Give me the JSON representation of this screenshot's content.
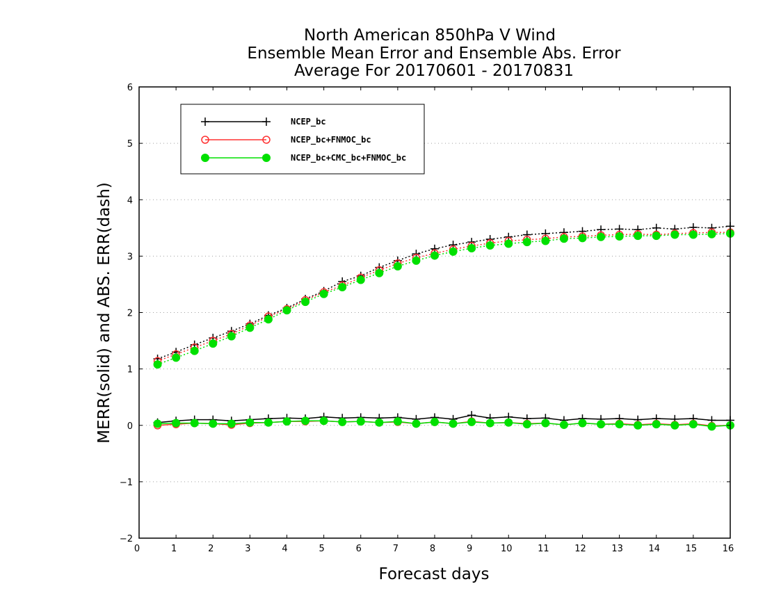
{
  "chart_data": {
    "type": "line",
    "title": [
      "North American 850hPa V Wind",
      "Ensemble Mean Error and Ensemble Abs. Error",
      "Average For 20170601 - 20170831"
    ],
    "xlabel": "Forecast days",
    "ylabel": "MERR(solid) and ABS. ERR(dash)",
    "xlim": [
      0,
      16
    ],
    "ylim": [
      -2,
      6
    ],
    "xticks": [
      "0",
      "1",
      "2",
      "3",
      "4",
      "5",
      "6",
      "7",
      "8",
      "9",
      "10",
      "11",
      "12",
      "13",
      "14",
      "15",
      "16"
    ],
    "yticks": [
      "−2",
      "−1",
      "0",
      "1",
      "2",
      "3",
      "4",
      "5",
      "6"
    ],
    "grid": "horizontal dotted",
    "legend_position": "top-left",
    "x": [
      0.5,
      1,
      1.5,
      2,
      2.5,
      3,
      3.5,
      4,
      4.5,
      5,
      5.5,
      6,
      6.5,
      7,
      7.5,
      8,
      8.5,
      9,
      9.5,
      10,
      10.5,
      11,
      11.5,
      12,
      12.5,
      13,
      13.5,
      14,
      14.5,
      15,
      15.5,
      16
    ],
    "series": [
      {
        "name": "NCEP_bc",
        "color": "#000000",
        "marker": "plus",
        "merr": [
          0.05,
          0.08,
          0.1,
          0.1,
          0.08,
          0.1,
          0.12,
          0.13,
          0.12,
          0.15,
          0.13,
          0.14,
          0.13,
          0.14,
          0.11,
          0.14,
          0.11,
          0.18,
          0.13,
          0.15,
          0.12,
          0.13,
          0.09,
          0.12,
          0.11,
          0.12,
          0.1,
          0.12,
          0.11,
          0.12,
          0.09,
          0.09
        ],
        "abs_err": [
          1.18,
          1.3,
          1.43,
          1.55,
          1.67,
          1.8,
          1.95,
          2.08,
          2.24,
          2.38,
          2.55,
          2.65,
          2.8,
          2.92,
          3.04,
          3.13,
          3.2,
          3.25,
          3.3,
          3.34,
          3.38,
          3.4,
          3.42,
          3.44,
          3.47,
          3.48,
          3.47,
          3.5,
          3.48,
          3.51,
          3.5,
          3.53
        ]
      },
      {
        "name": "NCEP_bc+FNMOC_bc",
        "color": "#ff3030",
        "marker": "open-circle",
        "merr": [
          0.0,
          0.02,
          0.04,
          0.03,
          0.01,
          0.04,
          0.05,
          0.07,
          0.07,
          0.08,
          0.06,
          0.07,
          0.05,
          0.06,
          0.03,
          0.06,
          0.03,
          0.07,
          0.04,
          0.05,
          0.03,
          0.04,
          0.01,
          0.04,
          0.02,
          0.03,
          0.01,
          0.03,
          0.01,
          0.03,
          -0.01,
          0.0
        ],
        "abs_err": [
          1.14,
          1.26,
          1.38,
          1.5,
          1.62,
          1.77,
          1.93,
          2.06,
          2.22,
          2.36,
          2.48,
          2.62,
          2.75,
          2.87,
          2.97,
          3.05,
          3.12,
          3.18,
          3.23,
          3.27,
          3.29,
          3.31,
          3.34,
          3.35,
          3.37,
          3.38,
          3.39,
          3.38,
          3.4,
          3.41,
          3.42,
          3.42
        ]
      },
      {
        "name": "NCEP_bc+CMC_bc+FNMOC_bc",
        "color": "#00e000",
        "marker": "filled-circle",
        "merr": [
          0.03,
          0.04,
          0.04,
          0.03,
          0.03,
          0.05,
          0.05,
          0.07,
          0.08,
          0.08,
          0.06,
          0.07,
          0.05,
          0.07,
          0.03,
          0.06,
          0.03,
          0.06,
          0.04,
          0.05,
          0.02,
          0.04,
          0.01,
          0.04,
          0.02,
          0.02,
          0.0,
          0.02,
          0.0,
          0.02,
          -0.02,
          0.0
        ],
        "abs_err": [
          1.08,
          1.2,
          1.32,
          1.45,
          1.58,
          1.73,
          1.88,
          2.04,
          2.19,
          2.33,
          2.45,
          2.58,
          2.7,
          2.82,
          2.92,
          3.01,
          3.08,
          3.14,
          3.19,
          3.22,
          3.25,
          3.27,
          3.31,
          3.32,
          3.34,
          3.35,
          3.36,
          3.36,
          3.38,
          3.38,
          3.39,
          3.4
        ]
      }
    ]
  }
}
